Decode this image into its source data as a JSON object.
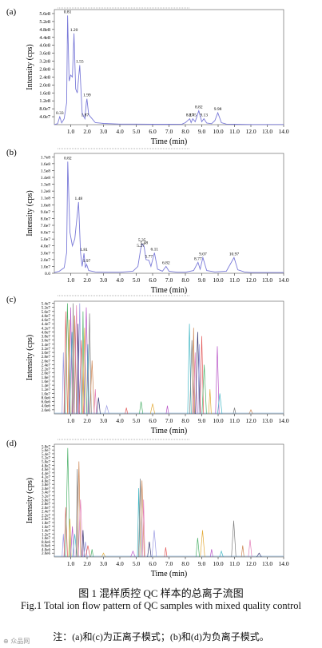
{
  "panel_colors": [
    "#9090e0",
    "#e04848",
    "#3aa85a",
    "#e0a020",
    "#b040c0",
    "#30b0c0",
    "#707070",
    "#c87840",
    "#e070b0",
    "#202060"
  ],
  "caption": {
    "cn": "图 1   混样质控 QC 样本的总离子流图",
    "en": "Fig.1   Total ion flow pattern of QC samples with mixed quality control",
    "note": "注：(a)和(c)为正离子模式；(b)和(d)为负离子模式。"
  },
  "watermark": "⊕ 众品网",
  "chart_data": [
    {
      "type": "line",
      "panel_label": "(a)",
      "xlabel": "Time (min)",
      "ylabel": "Intensity (cps)",
      "xlim": [
        0,
        14.0
      ],
      "x_ticks": [
        "1.0",
        "2.0",
        "3.0",
        "4.0",
        "5.0",
        "6.0",
        "7.0",
        "8.0",
        "9.0",
        "10.0",
        "11.0",
        "12.0",
        "13.0",
        "14.0"
      ],
      "y_ticks": [
        "4.0e7",
        "8.0e7",
        "1.2e8",
        "1.6e8",
        "2.0e8",
        "2.4e8",
        "2.8e8",
        "3.2e8",
        "3.6e8",
        "4.0e8",
        "4.4e8",
        "4.8e8",
        "5.2e8",
        "5.6e8"
      ],
      "ylim": [
        0,
        580000000.0
      ],
      "peak_labels": [
        "0.33",
        "0.81",
        "1.20",
        "1.55",
        "1.99",
        "1.87",
        "8.27",
        "8.45",
        "8.82",
        "9.13",
        "9.98"
      ],
      "series": [
        {
          "x": [
            0.0,
            0.2,
            0.33,
            0.45,
            0.6,
            0.75,
            0.81,
            0.9,
            1.0,
            1.1,
            1.2,
            1.3,
            1.4,
            1.55,
            1.7,
            1.8,
            1.87,
            1.95,
            1.99,
            2.1,
            2.3,
            2.5,
            3.0,
            4.0,
            5.0,
            6.0,
            7.0,
            7.8,
            8.0,
            8.27,
            8.35,
            8.45,
            8.6,
            8.82,
            9.0,
            9.13,
            9.3,
            9.6,
            9.8,
            9.98,
            10.2,
            10.5,
            11.0,
            12.0,
            13.0,
            14.0
          ],
          "y": [
            1000000.0,
            5000000.0,
            40000000.0,
            9000000.0,
            30000000.0,
            110000000.0,
            550000000.0,
            220000000.0,
            250000000.0,
            240000000.0,
            460000000.0,
            180000000.0,
            160000000.0,
            300000000.0,
            60000000.0,
            40000000.0,
            30000000.0,
            110000000.0,
            130000000.0,
            50000000.0,
            30000000.0,
            10000000.0,
            6000000.0,
            3000000.0,
            3000000.0,
            2000000.0,
            2000000.0,
            3000000.0,
            10000000.0,
            30000000.0,
            10000000.0,
            30000000.0,
            15000000.0,
            70000000.0,
            15000000.0,
            30000000.0,
            8000000.0,
            5000000.0,
            20000000.0,
            60000000.0,
            10000000.0,
            3000000.0,
            2000000.0,
            1000000.0,
            1000000.0,
            1000000.0
          ]
        }
      ]
    },
    {
      "type": "line",
      "panel_label": "(b)",
      "xlabel": "Time (min)",
      "ylabel": "Intensity (cps)",
      "xlim": [
        0,
        14.0
      ],
      "x_ticks": [
        "1.0",
        "2.0",
        "3.0",
        "4.0",
        "5.0",
        "6.0",
        "7.0",
        "8.0",
        "9.0",
        "10.0",
        "11.0",
        "12.0",
        "13.0",
        "14.0"
      ],
      "y_ticks": [
        "0.0",
        "1.0e7",
        "2.0e7",
        "3.0e7",
        "4.0e7",
        "5.0e7",
        "6.0e7",
        "7.0e7",
        "8.0e7",
        "9.0e7",
        "1.0e8",
        "1.1e8",
        "1.2e8",
        "1.3e8",
        "1.4e8",
        "1.5e8",
        "1.6e8",
        "1.7e8"
      ],
      "ylim": [
        0,
        175000000.0
      ],
      "peak_labels": [
        "0.82",
        "1.48",
        "1.81",
        "1.97",
        "5.27",
        "5.35",
        "5.48",
        "6.11",
        "5.77",
        "6.82",
        "8.77",
        "9.07",
        "10.97"
      ],
      "series": [
        {
          "x": [
            0.0,
            0.3,
            0.6,
            0.75,
            0.82,
            0.95,
            1.1,
            1.25,
            1.48,
            1.6,
            1.7,
            1.81,
            1.9,
            1.97,
            2.1,
            2.5,
            3.0,
            4.0,
            4.8,
            5.1,
            5.27,
            5.35,
            5.48,
            5.6,
            5.77,
            5.9,
            6.11,
            6.3,
            6.6,
            6.82,
            7.0,
            7.5,
            8.0,
            8.5,
            8.77,
            8.9,
            9.07,
            9.3,
            9.8,
            10.5,
            10.97,
            11.2,
            11.6,
            12.0,
            13.0,
            14.0
          ],
          "y": [
            1000000.0,
            3000000.0,
            8000000.0,
            30000000.0,
            163000000.0,
            60000000.0,
            40000000.0,
            50000000.0,
            104000000.0,
            30000000.0,
            10000000.0,
            29000000.0,
            8000000.0,
            13000000.0,
            4000000.0,
            2000000.0,
            1500000.0,
            1500000.0,
            3000000.0,
            10000000.0,
            35000000.0,
            43000000.0,
            39000000.0,
            20000000.0,
            19000000.0,
            10000000.0,
            30000000.0,
            6000000.0,
            3000000.0,
            10000000.0,
            3000000.0,
            1500000.0,
            1500000.0,
            4000000.0,
            16000000.0,
            6000000.0,
            23000000.0,
            4000000.0,
            2000000.0,
            3000000.0,
            23000000.0,
            5000000.0,
            2000000.0,
            1000000.0,
            1000000.0,
            1000000.0
          ]
        }
      ]
    },
    {
      "type": "line",
      "panel_label": "(c)",
      "xlabel": "Time (min)",
      "ylabel": "Intensity (cps)",
      "xlim": [
        0,
        14.0
      ],
      "x_ticks": [
        "1.0",
        "2.0",
        "3.0",
        "4.0",
        "5.0",
        "6.0",
        "7.0",
        "8.0",
        "9.0",
        "10.0",
        "11.0",
        "12.0",
        "13.0",
        "14.0"
      ],
      "y_ticks": [
        "2.0e6",
        "4.0e6",
        "6.0e6",
        "8.0e6",
        "1.0e7",
        "1.2e7",
        "1.4e7",
        "1.6e7",
        "1.8e7",
        "2.0e7",
        "2.2e7",
        "2.4e7",
        "2.6e7",
        "2.8e7",
        "3.0e7",
        "3.2e7",
        "3.4e7",
        "3.6e7",
        "3.8e7",
        "4.0e7",
        "4.2e7",
        "4.4e7",
        "4.6e7",
        "4.8e7",
        "5.0e7",
        "5.2e7",
        "5.4e7"
      ],
      "ylim": [
        0,
        55000000.0
      ],
      "peaks": [
        {
          "x": 0.55,
          "y": 30000000.0
        },
        {
          "x": 0.7,
          "y": 50000000.0
        },
        {
          "x": 0.8,
          "y": 54000000.0
        },
        {
          "x": 0.9,
          "y": 46000000.0
        },
        {
          "x": 1.0,
          "y": 52000000.0
        },
        {
          "x": 1.08,
          "y": 40000000.0
        },
        {
          "x": 1.15,
          "y": 54000000.0
        },
        {
          "x": 1.25,
          "y": 48000000.0
        },
        {
          "x": 1.35,
          "y": 53000000.0
        },
        {
          "x": 1.45,
          "y": 44000000.0
        },
        {
          "x": 1.55,
          "y": 54000000.0
        },
        {
          "x": 1.65,
          "y": 36000000.0
        },
        {
          "x": 1.75,
          "y": 50000000.0
        },
        {
          "x": 1.85,
          "y": 42000000.0
        },
        {
          "x": 1.95,
          "y": 52000000.0
        },
        {
          "x": 2.05,
          "y": 34000000.0
        },
        {
          "x": 2.15,
          "y": 49000000.0
        },
        {
          "x": 2.3,
          "y": 26000000.0
        },
        {
          "x": 2.5,
          "y": 12000000.0
        },
        {
          "x": 2.7,
          "y": 8000000.0
        },
        {
          "x": 3.2,
          "y": 4000000.0
        },
        {
          "x": 4.4,
          "y": 3000000.0
        },
        {
          "x": 5.3,
          "y": 6000000.0
        },
        {
          "x": 6.0,
          "y": 5000000.0
        },
        {
          "x": 6.9,
          "y": 4000000.0
        },
        {
          "x": 8.25,
          "y": 44000000.0
        },
        {
          "x": 8.4,
          "y": 36000000.0
        },
        {
          "x": 8.5,
          "y": 42000000.0
        },
        {
          "x": 8.6,
          "y": 30000000.0
        },
        {
          "x": 8.75,
          "y": 40000000.0
        },
        {
          "x": 8.85,
          "y": 34000000.0
        },
        {
          "x": 9.0,
          "y": 38000000.0
        },
        {
          "x": 9.15,
          "y": 24000000.0
        },
        {
          "x": 9.5,
          "y": 12000000.0
        },
        {
          "x": 9.95,
          "y": 33000000.0
        },
        {
          "x": 10.1,
          "y": 10000000.0
        },
        {
          "x": 11.0,
          "y": 3000000.0
        },
        {
          "x": 12.0,
          "y": 2000000.0
        }
      ]
    },
    {
      "type": "line",
      "panel_label": "(d)",
      "xlabel": "Time (min)",
      "ylabel": "Intensity (cps)",
      "xlim": [
        0,
        14.0
      ],
      "x_ticks": [
        "1.0",
        "2.0",
        "3.0",
        "4.0",
        "5.0",
        "6.0",
        "7.0",
        "8.0",
        "9.0",
        "10.0",
        "11.0",
        "12.0",
        "13.0",
        "14.0"
      ],
      "y_ticks": [
        "2.0e6",
        "4.0e6",
        "6.0e6",
        "8.0e6",
        "1.0e7",
        "1.2e7",
        "1.4e7",
        "1.6e7",
        "1.8e7",
        "2.0e7",
        "2.2e7",
        "2.4e7",
        "2.6e7",
        "2.8e7",
        "3.0e7",
        "3.2e7",
        "3.4e7",
        "3.6e7",
        "3.8e7",
        "4.0e7",
        "4.2e7",
        "4.4e7",
        "4.6e7",
        "4.8e7",
        "5.0e7",
        "5.2e7",
        "5.4e7",
        "5.6e7",
        "5.8e7"
      ],
      "ylim": [
        0,
        59000000.0
      ],
      "peaks": [
        {
          "x": 0.55,
          "y": 12000000.0
        },
        {
          "x": 0.7,
          "y": 26000000.0
        },
        {
          "x": 0.82,
          "y": 57000000.0
        },
        {
          "x": 0.95,
          "y": 20000000.0
        },
        {
          "x": 1.1,
          "y": 16000000.0
        },
        {
          "x": 1.25,
          "y": 12000000.0
        },
        {
          "x": 1.4,
          "y": 46000000.0
        },
        {
          "x": 1.5,
          "y": 50000000.0
        },
        {
          "x": 1.6,
          "y": 30000000.0
        },
        {
          "x": 1.75,
          "y": 14000000.0
        },
        {
          "x": 1.9,
          "y": 8000000.0
        },
        {
          "x": 2.05,
          "y": 6000000.0
        },
        {
          "x": 2.3,
          "y": 4000000.0
        },
        {
          "x": 3.0,
          "y": 2000000.0
        },
        {
          "x": 4.8,
          "y": 3000000.0
        },
        {
          "x": 5.15,
          "y": 36000000.0
        },
        {
          "x": 5.25,
          "y": 41000000.0
        },
        {
          "x": 5.35,
          "y": 40000000.0
        },
        {
          "x": 5.45,
          "y": 30000000.0
        },
        {
          "x": 5.8,
          "y": 8000000.0
        },
        {
          "x": 6.1,
          "y": 14000000.0
        },
        {
          "x": 6.8,
          "y": 5000000.0
        },
        {
          "x": 8.75,
          "y": 10000000.0
        },
        {
          "x": 9.05,
          "y": 14000000.0
        },
        {
          "x": 9.6,
          "y": 4000000.0
        },
        {
          "x": 10.2,
          "y": 3000000.0
        },
        {
          "x": 10.95,
          "y": 19000000.0
        },
        {
          "x": 11.5,
          "y": 6000000.0
        },
        {
          "x": 11.95,
          "y": 9000000.0
        },
        {
          "x": 12.5,
          "y": 2000000.0
        }
      ]
    }
  ]
}
